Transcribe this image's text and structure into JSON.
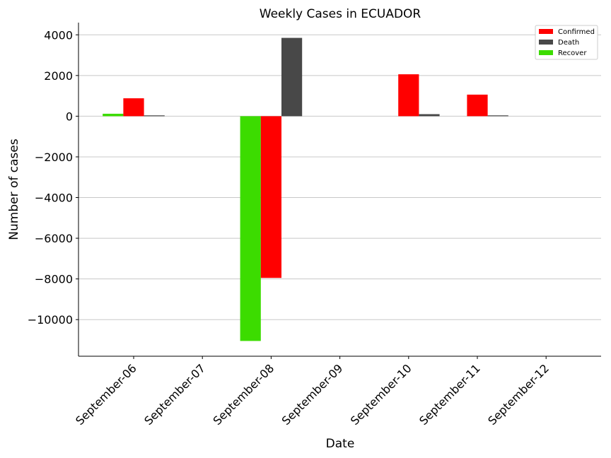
{
  "chart_data": {
    "type": "bar",
    "title": "Weekly Cases in ECUADOR",
    "xlabel": "Date",
    "ylabel": "Number of cases",
    "categories": [
      "September-06",
      "September-07",
      "September-08",
      "September-09",
      "September-10",
      "September-11",
      "September-12"
    ],
    "series": [
      {
        "name": "Recover",
        "color": "#3cdc00",
        "values": [
          120,
          0,
          -11050,
          0,
          0,
          0,
          0
        ]
      },
      {
        "name": "Confirmed",
        "color": "#ff0000",
        "values": [
          880,
          0,
          -7950,
          0,
          2060,
          1060,
          0
        ]
      },
      {
        "name": "Death",
        "color": "#484848",
        "values": [
          40,
          0,
          3850,
          0,
          100,
          40,
          0
        ]
      }
    ],
    "ylim": [
      -11800,
      4600
    ],
    "yticks": [
      4000,
      2000,
      0,
      -2000,
      -4000,
      -6000,
      -8000,
      -10000
    ],
    "yticks_labels": [
      "4000",
      "2000",
      "0",
      "−2000",
      "−4000",
      "−6000",
      "−8000",
      "−10000"
    ],
    "legend": {
      "position": "top-right",
      "entries": [
        {
          "label": "Confirmed",
          "color": "#ff0000"
        },
        {
          "label": "Death",
          "color": "#484848"
        },
        {
          "label": "Recover",
          "color": "#3cdc00"
        }
      ]
    },
    "grid": "horizontal"
  }
}
